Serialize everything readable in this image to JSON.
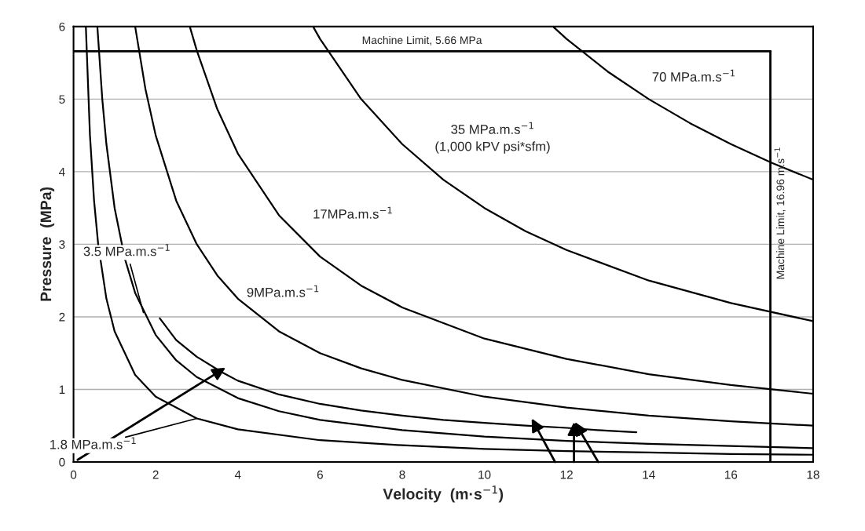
{
  "chart_data": {
    "type": "line",
    "xlabel": "Velocity  (m·s$^{−1}$)",
    "ylabel": "Pressure  (MPa)",
    "xlim": [
      0,
      18
    ],
    "ylim": [
      0,
      6
    ],
    "xticks": [
      0,
      2,
      4,
      6,
      8,
      10,
      12,
      14,
      16,
      18
    ],
    "yticks": [
      0,
      1,
      2,
      3,
      4,
      5,
      6
    ],
    "grid": "y",
    "series": [
      {
        "color": "#000000",
        "x": [
          0.3,
          0.4,
          0.5,
          0.6,
          0.8,
          1,
          1.5,
          2,
          3,
          4,
          6,
          8,
          10,
          12,
          14,
          16,
          18
        ],
        "values": [
          6,
          4.5,
          3.6,
          3,
          2.25,
          1.8,
          1.2,
          0.9,
          0.6,
          0.45,
          0.3,
          0.23,
          0.18,
          0.15,
          0.13,
          0.11,
          0.1
        ]
      },
      {
        "color": "#000000",
        "x": [
          0.58,
          0.7,
          0.8,
          1,
          1.25,
          1.5,
          2,
          2.5,
          3,
          4,
          5,
          6,
          8,
          10,
          12,
          14,
          16,
          18
        ],
        "values": [
          6.0,
          5.0,
          4.38,
          3.5,
          2.8,
          2.33,
          1.75,
          1.4,
          1.17,
          0.88,
          0.7,
          0.58,
          0.44,
          0.35,
          0.29,
          0.25,
          0.22,
          0.19
        ]
      },
      {
        "color": "#000000",
        "x": [
          1.5,
          1.75,
          2,
          2.5,
          3,
          3.5,
          4,
          5,
          6,
          7,
          8,
          10,
          12,
          14,
          16,
          18
        ],
        "values": [
          6,
          5.14,
          4.5,
          3.6,
          3,
          2.57,
          2.25,
          1.8,
          1.5,
          1.29,
          1.13,
          0.9,
          0.75,
          0.64,
          0.56,
          0.5
        ]
      },
      {
        "color": "#000000",
        "x": [
          2.83,
          3,
          3.5,
          4,
          5,
          6,
          7,
          8,
          10,
          12,
          14,
          16,
          18
        ],
        "values": [
          6.0,
          5.67,
          4.86,
          4.25,
          3.4,
          2.83,
          2.43,
          2.13,
          1.7,
          1.42,
          1.21,
          1.06,
          0.94
        ]
      },
      {
        "color": "#000000",
        "x": [
          5.83,
          6,
          7,
          8,
          9,
          10,
          11,
          12,
          14,
          16,
          18
        ],
        "values": [
          6.0,
          5.83,
          5.0,
          4.38,
          3.89,
          3.5,
          3.18,
          2.92,
          2.5,
          2.19,
          1.94
        ]
      },
      {
        "color": "#000000",
        "x": [
          11.67,
          12,
          13,
          14,
          15,
          16,
          17,
          18
        ],
        "values": [
          6.0,
          5.83,
          5.38,
          5.0,
          4.67,
          4.38,
          4.12,
          3.89
        ]
      },
      {
        "color": "#000000",
        "x": [
          2.1,
          2.5,
          3,
          3.6,
          4,
          5,
          6,
          7,
          8,
          9,
          10,
          11,
          12,
          13,
          13.7
        ],
        "values": [
          1.98,
          1.68,
          1.45,
          1.24,
          1.12,
          0.93,
          0.8,
          0.71,
          0.64,
          0.58,
          0.54,
          0.5,
          0.47,
          0.43,
          0.41
        ]
      }
    ],
    "ref_lines": [
      {
        "axis": "y",
        "value": 5.66,
        "label": "Machine Limit, 5.66 MPa",
        "color": "#000000"
      },
      {
        "axis": "x",
        "value": 16.96,
        "label": "Machine Limit, 16.96 m.s$^{−1}$",
        "color": "#000000"
      }
    ],
    "annotations": [
      "70 MPa.m.s$^{−1}$",
      "35 MPa.m.s$^{−1}$\n(1,000 kPV psi*sfm)",
      "17MPa.m.s$^{−1}$",
      "9MPa.m.s$^{−1}$",
      {
        "text": "3.5 MPa.m.s$^{−1}$",
        "x": 1.7,
        "y": 2.06
      },
      {
        "text": "1.8 MPa.m.s$^{−1}$",
        "x": 3.0,
        "y": 0.6
      }
    ]
  }
}
